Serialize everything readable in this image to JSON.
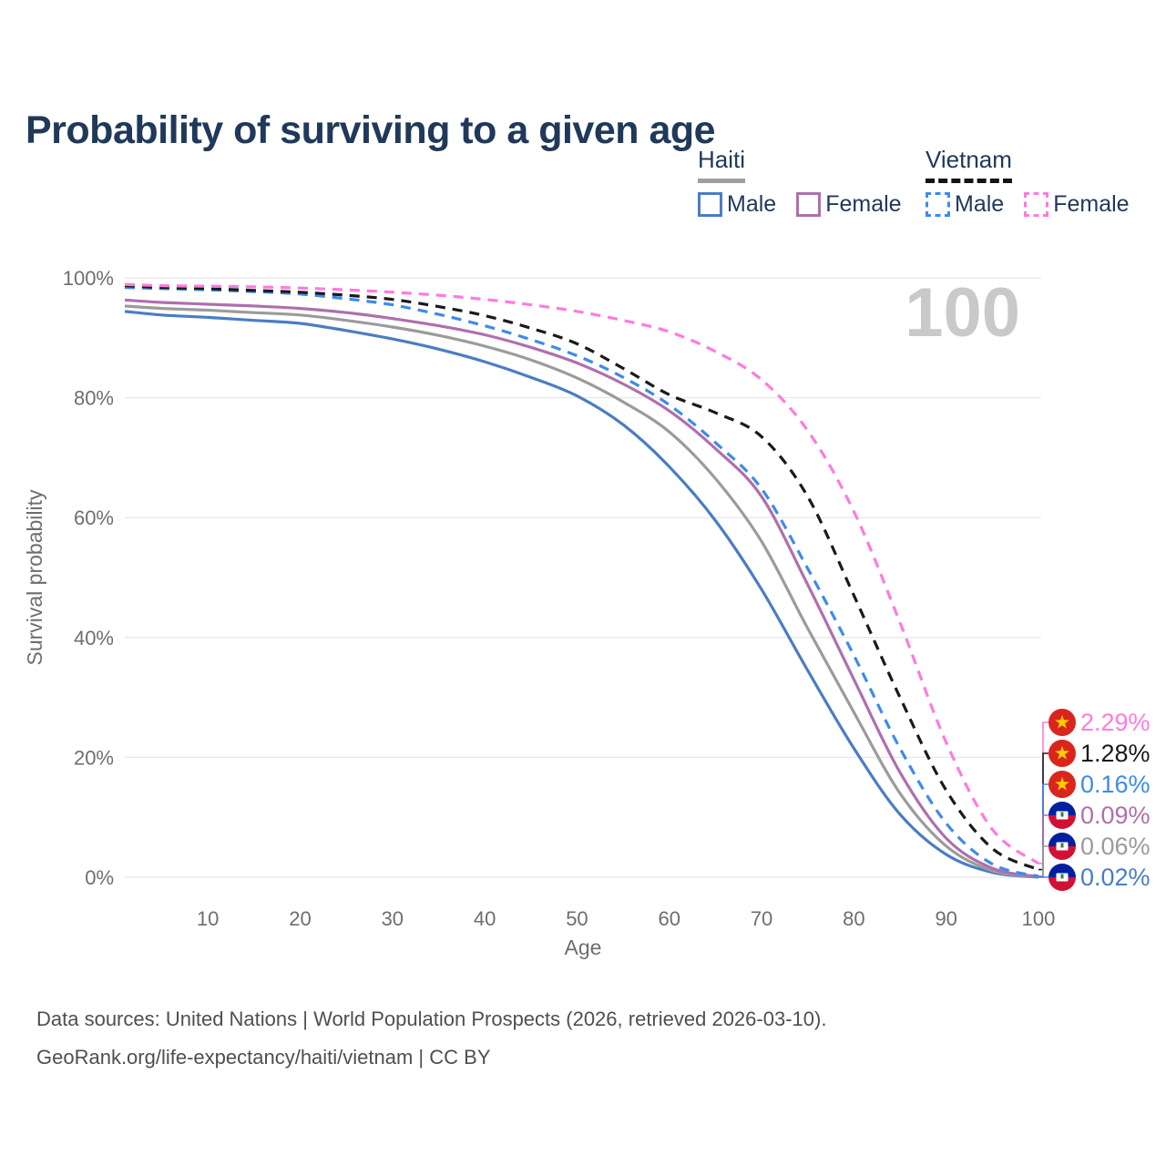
{
  "title": "Probability of surviving to a given age",
  "hover_age_label": "100",
  "legend": {
    "haiti": {
      "title": "Haiti",
      "male": "Male",
      "female": "Female"
    },
    "vietnam": {
      "title": "Vietnam",
      "male": "Male",
      "female": "Female"
    }
  },
  "colors": {
    "haiti_male": "#4a7dc4",
    "haiti_female": "#af6fad",
    "haiti_both": "#9b9b9b",
    "vietnam_male": "#3d8bea",
    "vietnam_female": "#ff7ade",
    "vietnam_both": "#1a1a1a",
    "grid": "#e8e8e8",
    "axis_text": "#6e6e6e",
    "hover_text": "#c9c9c9",
    "title_text": "#20395b",
    "vietnam_flag_red": "#da251d",
    "vietnam_flag_star": "#ffcd00",
    "haiti_flag_blue": "#00209f",
    "haiti_flag_red": "#d21034"
  },
  "chart_data": {
    "type": "line",
    "title": "Probability of surviving to a given age",
    "xlabel": "Age",
    "ylabel": "Survival probability",
    "xlim": [
      1,
      100
    ],
    "ylim": [
      0,
      100
    ],
    "grid": "horizontal",
    "x_ticks": [
      10,
      20,
      30,
      40,
      50,
      60,
      70,
      80,
      90,
      100
    ],
    "y_ticks": [
      {
        "value": 0,
        "label": "0%"
      },
      {
        "value": 20,
        "label": "20%"
      },
      {
        "value": 40,
        "label": "40%"
      },
      {
        "value": 60,
        "label": "60%"
      },
      {
        "value": 80,
        "label": "80%"
      },
      {
        "value": 100,
        "label": "100%"
      }
    ],
    "ages": [
      1,
      5,
      10,
      15,
      20,
      25,
      30,
      35,
      40,
      45,
      50,
      55,
      60,
      65,
      70,
      75,
      80,
      85,
      90,
      95,
      100
    ],
    "series": [
      {
        "id": "vietnam_female",
        "country": "Vietnam",
        "sex": "Female",
        "dash": true,
        "color": "#ff7ade",
        "end_label": "2.29%",
        "values": [
          98.9,
          98.7,
          98.6,
          98.5,
          98.3,
          98.0,
          97.6,
          97.1,
          96.4,
          95.5,
          94.4,
          92.9,
          91.0,
          87.7,
          83.0,
          74.5,
          61.0,
          42.5,
          22.5,
          8.0,
          2.29
        ]
      },
      {
        "id": "vietnam_both",
        "country": "Vietnam",
        "sex": "Both sexes",
        "dash": true,
        "color": "#1a1a1a",
        "end_label": "1.28%",
        "values": [
          98.7,
          98.4,
          98.2,
          97.9,
          97.6,
          97.1,
          96.4,
          95.2,
          93.7,
          91.6,
          89.0,
          84.9,
          80.5,
          77.5,
          73.5,
          63.5,
          47.0,
          30.0,
          14.5,
          4.8,
          1.28
        ]
      },
      {
        "id": "vietnam_male",
        "country": "Vietnam",
        "sex": "Male",
        "dash": true,
        "color": "#3d8bea",
        "end_label": "0.16%",
        "values": [
          98.4,
          98.2,
          98.0,
          97.7,
          97.3,
          96.5,
          95.5,
          93.9,
          92.0,
          89.7,
          87.0,
          83.4,
          78.8,
          72.5,
          64.8,
          51.5,
          37.0,
          21.5,
          9.0,
          2.2,
          0.16
        ]
      },
      {
        "id": "haiti_female",
        "country": "Haiti",
        "sex": "Female",
        "dash": false,
        "color": "#af6fad",
        "end_label": "0.09%",
        "values": [
          96.3,
          95.9,
          95.6,
          95.3,
          94.9,
          94.2,
          93.2,
          92.0,
          90.5,
          88.4,
          85.8,
          82.3,
          77.8,
          71.5,
          63.5,
          48.8,
          33.0,
          17.5,
          6.5,
          1.5,
          0.09
        ]
      },
      {
        "id": "haiti_both",
        "country": "Haiti",
        "sex": "Both sexes",
        "dash": false,
        "color": "#9b9b9b",
        "end_label": "0.06%",
        "values": [
          95.3,
          94.9,
          94.6,
          94.2,
          93.8,
          92.9,
          91.8,
          90.4,
          88.6,
          86.3,
          83.3,
          79.3,
          74.3,
          66.5,
          56.0,
          41.5,
          27.5,
          14.0,
          5.2,
          1.1,
          0.06
        ]
      },
      {
        "id": "haiti_male",
        "country": "Haiti",
        "sex": "Male",
        "dash": false,
        "color": "#4a7dc4",
        "end_label": "0.02%",
        "values": [
          94.4,
          93.8,
          93.4,
          92.9,
          92.4,
          91.2,
          89.8,
          88.1,
          86.0,
          83.4,
          80.3,
          75.5,
          68.5,
          59.5,
          48.0,
          34.5,
          21.5,
          10.5,
          3.8,
          0.8,
          0.02
        ]
      }
    ]
  },
  "footer": {
    "line1": "Data sources: United Nations | World Population Prospects (2026, retrieved 2026-03-10).",
    "line2": "GeoRank.org/life-expectancy/haiti/vietnam | CC BY"
  }
}
